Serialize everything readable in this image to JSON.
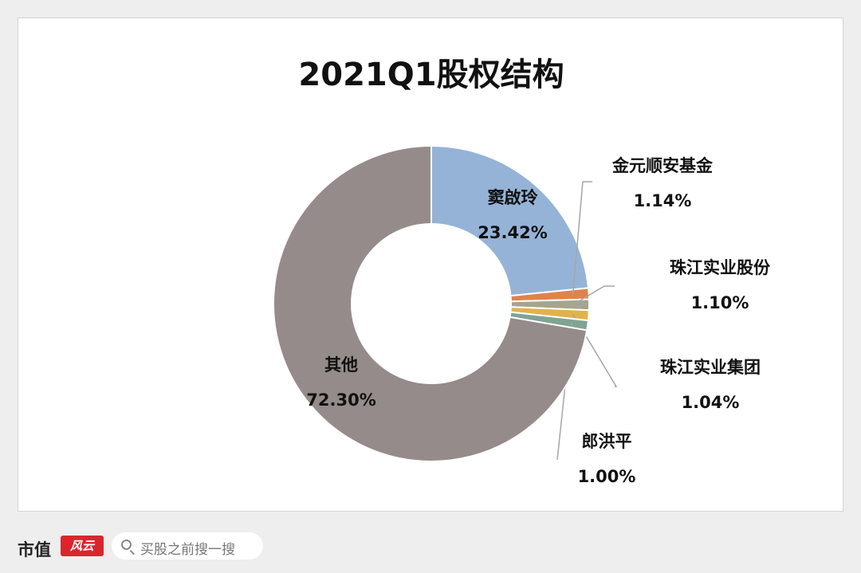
{
  "chart_data": {
    "type": "pie",
    "style": "donut",
    "title": "2021Q1股权结构",
    "slices": [
      {
        "label": "窦啟玲",
        "value": 23.42,
        "display": "23.42%",
        "color": "#95b3d7"
      },
      {
        "label": "金元顺安基金",
        "value": 1.14,
        "display": "1.14%",
        "color": "#e0834b"
      },
      {
        "label": "珠江实业股份",
        "value": 1.1,
        "display": "1.10%",
        "color": "#a5a58f"
      },
      {
        "label": "珠江实业集团",
        "value": 1.04,
        "display": "1.04%",
        "color": "#e2b24a"
      },
      {
        "label": "郎洪平",
        "value": 1.0,
        "display": "1.00%",
        "color": "#7fa394"
      },
      {
        "label": "其他",
        "value": 72.3,
        "display": "72.30%",
        "color": "#958b8b"
      }
    ],
    "legend": "none"
  },
  "footer": {
    "brand": "市值",
    "brand_badge": "风云",
    "search_placeholder": "买股之前搜一搜"
  }
}
